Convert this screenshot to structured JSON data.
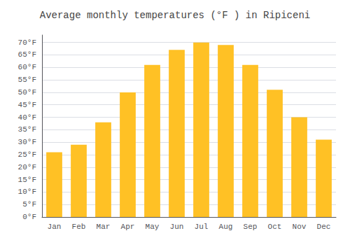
{
  "chart_data": {
    "type": "bar",
    "title": "Average monthly temperatures (°F ) in Ripiceni",
    "categories": [
      "Jan",
      "Feb",
      "Mar",
      "Apr",
      "May",
      "Jun",
      "Jul",
      "Aug",
      "Sep",
      "Oct",
      "Nov",
      "Dec"
    ],
    "values": [
      26,
      29,
      38,
      50,
      61,
      67,
      70,
      69,
      61,
      51,
      40,
      31
    ],
    "color": "#FFC125",
    "ylim": [
      0,
      73
    ],
    "yticks": [
      {
        "value": 0,
        "label": "0°F"
      },
      {
        "value": 5,
        "label": "5°F"
      },
      {
        "value": 10,
        "label": "10°F"
      },
      {
        "value": 15,
        "label": "15°F"
      },
      {
        "value": 20,
        "label": "20°F"
      },
      {
        "value": 25,
        "label": "25°F"
      },
      {
        "value": 30,
        "label": "30°F"
      },
      {
        "value": 35,
        "label": "35°F"
      },
      {
        "value": 40,
        "label": "40°F"
      },
      {
        "value": 45,
        "label": "45°F"
      },
      {
        "value": 50,
        "label": "50°F"
      },
      {
        "value": 55,
        "label": "55°F"
      },
      {
        "value": 60,
        "label": "60°F"
      },
      {
        "value": 65,
        "label": "65°F"
      },
      {
        "value": 70,
        "label": "70°F"
      }
    ],
    "grid": true
  }
}
